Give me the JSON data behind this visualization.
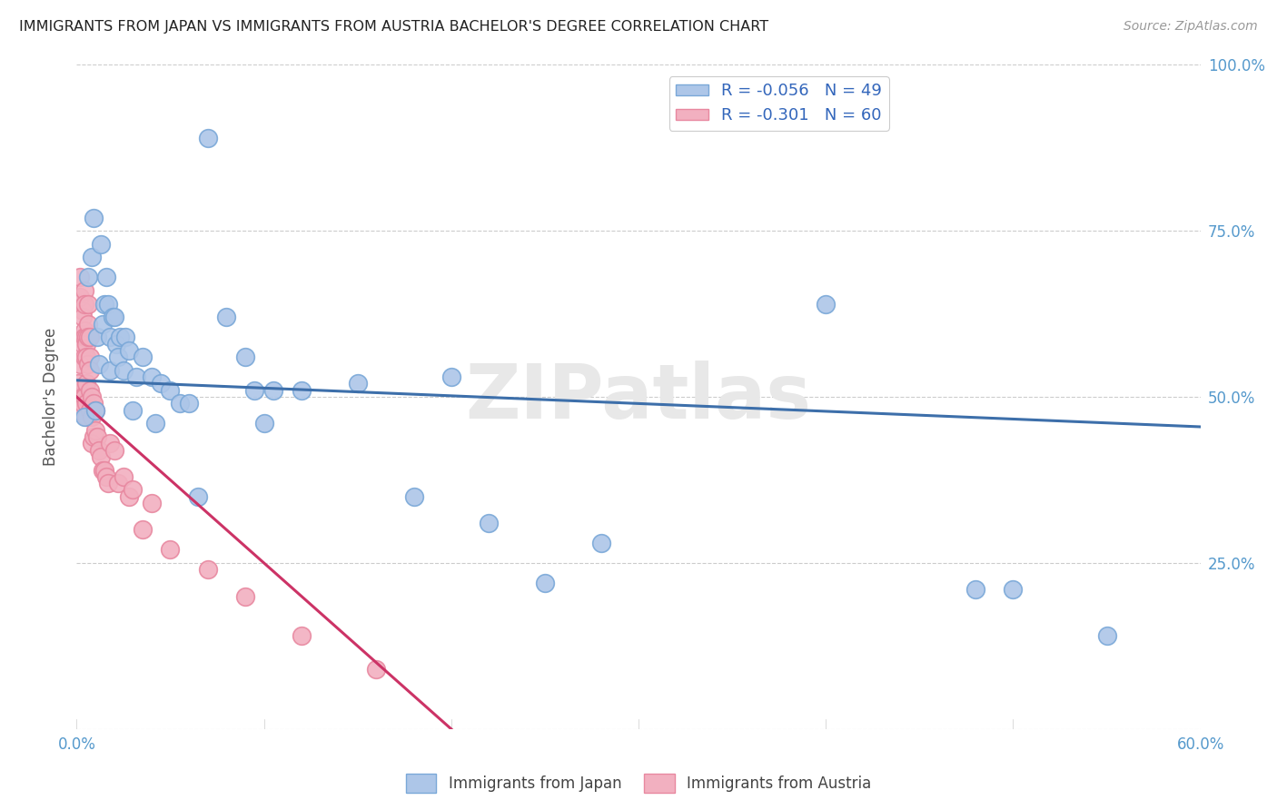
{
  "title": "IMMIGRANTS FROM JAPAN VS IMMIGRANTS FROM AUSTRIA BACHELOR'S DEGREE CORRELATION CHART",
  "source": "Source: ZipAtlas.com",
  "ylabel": "Bachelor's Degree",
  "xlim": [
    0.0,
    0.6
  ],
  "ylim": [
    0.0,
    1.0
  ],
  "xticks": [
    0.0,
    0.1,
    0.2,
    0.3,
    0.4,
    0.5,
    0.6
  ],
  "xticklabels": [
    "0.0%",
    "",
    "",
    "",
    "",
    "",
    "60.0%"
  ],
  "yticks": [
    0.0,
    0.25,
    0.5,
    0.75,
    1.0
  ],
  "yticklabels_left": [
    "",
    "",
    "",
    "",
    ""
  ],
  "yticklabels_right": [
    "",
    "25.0%",
    "50.0%",
    "75.0%",
    "100.0%"
  ],
  "watermark": "ZIPatlas",
  "legend_japan_r": "R = -0.056",
  "legend_japan_n": "N = 49",
  "legend_austria_r": "R = -0.301",
  "legend_austria_n": "N = 60",
  "japan_color": "#adc6e8",
  "austria_color": "#f2b0c0",
  "japan_edge": "#7aa8d8",
  "austria_edge": "#e888a0",
  "japan_line_color": "#3d6faa",
  "austria_line_color": "#cc3366",
  "austria_line_dashed_color": "#f0c0cc",
  "grid_color": "#cccccc",
  "background_color": "#ffffff",
  "japan_line_x0": 0.0,
  "japan_line_y0": 0.525,
  "japan_line_x1": 0.6,
  "japan_line_y1": 0.455,
  "austria_line_x0": 0.0,
  "austria_line_y0": 0.5,
  "austria_line_x1": 0.2,
  "austria_line_y1": 0.0,
  "japan_x": [
    0.004,
    0.006,
    0.008,
    0.009,
    0.01,
    0.011,
    0.012,
    0.013,
    0.014,
    0.015,
    0.016,
    0.017,
    0.018,
    0.018,
    0.019,
    0.02,
    0.021,
    0.022,
    0.023,
    0.025,
    0.026,
    0.028,
    0.03,
    0.032,
    0.035,
    0.04,
    0.042,
    0.045,
    0.05,
    0.055,
    0.06,
    0.065,
    0.07,
    0.08,
    0.09,
    0.095,
    0.1,
    0.105,
    0.12,
    0.15,
    0.18,
    0.2,
    0.22,
    0.25,
    0.28,
    0.4,
    0.48,
    0.5,
    0.55
  ],
  "japan_y": [
    0.47,
    0.68,
    0.71,
    0.77,
    0.48,
    0.59,
    0.55,
    0.73,
    0.61,
    0.64,
    0.68,
    0.64,
    0.59,
    0.54,
    0.62,
    0.62,
    0.58,
    0.56,
    0.59,
    0.54,
    0.59,
    0.57,
    0.48,
    0.53,
    0.56,
    0.53,
    0.46,
    0.52,
    0.51,
    0.49,
    0.49,
    0.35,
    0.89,
    0.62,
    0.56,
    0.51,
    0.46,
    0.51,
    0.51,
    0.52,
    0.35,
    0.53,
    0.31,
    0.22,
    0.28,
    0.64,
    0.21,
    0.21,
    0.14
  ],
  "austria_x": [
    0.001,
    0.001,
    0.001,
    0.002,
    0.002,
    0.002,
    0.002,
    0.003,
    0.003,
    0.003,
    0.003,
    0.003,
    0.004,
    0.004,
    0.004,
    0.004,
    0.004,
    0.004,
    0.005,
    0.005,
    0.005,
    0.005,
    0.005,
    0.005,
    0.006,
    0.006,
    0.006,
    0.006,
    0.007,
    0.007,
    0.007,
    0.007,
    0.007,
    0.008,
    0.008,
    0.008,
    0.009,
    0.009,
    0.01,
    0.01,
    0.011,
    0.012,
    0.013,
    0.014,
    0.015,
    0.016,
    0.017,
    0.018,
    0.02,
    0.022,
    0.025,
    0.028,
    0.03,
    0.035,
    0.04,
    0.05,
    0.07,
    0.09,
    0.12,
    0.16
  ],
  "austria_y": [
    0.5,
    0.48,
    0.52,
    0.65,
    0.68,
    0.48,
    0.55,
    0.5,
    0.58,
    0.63,
    0.62,
    0.49,
    0.66,
    0.64,
    0.6,
    0.59,
    0.56,
    0.5,
    0.59,
    0.58,
    0.56,
    0.52,
    0.49,
    0.47,
    0.64,
    0.61,
    0.59,
    0.55,
    0.59,
    0.56,
    0.54,
    0.51,
    0.48,
    0.5,
    0.47,
    0.43,
    0.49,
    0.44,
    0.48,
    0.45,
    0.44,
    0.42,
    0.41,
    0.39,
    0.39,
    0.38,
    0.37,
    0.43,
    0.42,
    0.37,
    0.38,
    0.35,
    0.36,
    0.3,
    0.34,
    0.27,
    0.24,
    0.2,
    0.14,
    0.09
  ]
}
